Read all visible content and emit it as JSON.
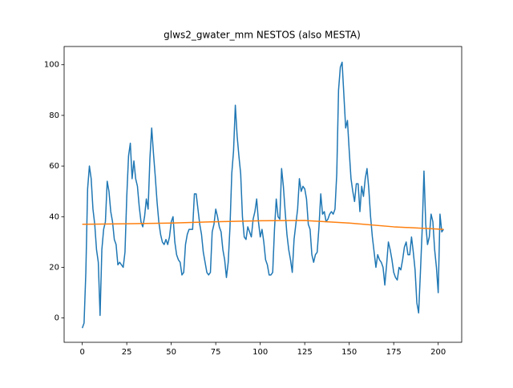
{
  "chart_data": {
    "type": "line",
    "title": "glws2_gwater_mm NESTOS (also MESTA)",
    "xlim": [
      -10.2,
      213.2
    ],
    "ylim": [
      -9.6,
      107.2
    ],
    "xticks": [
      0,
      25,
      50,
      75,
      100,
      125,
      150,
      175,
      200
    ],
    "yticks": [
      0,
      20,
      40,
      60,
      80,
      100
    ],
    "grid": false,
    "series": [
      {
        "color": "#1f77b4",
        "x": [
          0,
          1,
          2,
          3,
          4,
          5,
          6,
          7,
          8,
          9,
          10,
          11,
          12,
          13,
          14,
          15,
          16,
          17,
          18,
          19,
          20,
          21,
          22,
          23,
          24,
          25,
          26,
          27,
          28,
          29,
          30,
          31,
          32,
          33,
          34,
          35,
          36,
          37,
          38,
          39,
          40,
          41,
          42,
          43,
          44,
          45,
          46,
          47,
          48,
          49,
          50,
          51,
          52,
          53,
          54,
          55,
          56,
          57,
          58,
          59,
          60,
          61,
          62,
          63,
          64,
          65,
          66,
          67,
          68,
          69,
          70,
          71,
          72,
          73,
          74,
          75,
          76,
          77,
          78,
          79,
          80,
          81,
          82,
          83,
          84,
          85,
          86,
          87,
          88,
          89,
          90,
          91,
          92,
          93,
          94,
          95,
          96,
          97,
          98,
          99,
          100,
          101,
          102,
          103,
          104,
          105,
          106,
          107,
          108,
          109,
          110,
          111,
          112,
          113,
          114,
          115,
          116,
          117,
          118,
          119,
          120,
          121,
          122,
          123,
          124,
          125,
          126,
          127,
          128,
          129,
          130,
          131,
          132,
          133,
          134,
          135,
          136,
          137,
          138,
          139,
          140,
          141,
          142,
          143,
          144,
          145,
          146,
          147,
          148,
          149,
          150,
          151,
          152,
          153,
          154,
          155,
          156,
          157,
          158,
          159,
          160,
          161,
          162,
          163,
          164,
          165,
          166,
          167,
          168,
          169,
          170,
          171,
          172,
          173,
          174,
          175,
          176,
          177,
          178,
          179,
          180,
          181,
          182,
          183,
          184,
          185,
          186,
          187,
          188,
          189,
          190,
          191,
          192,
          193,
          194,
          195,
          196,
          197,
          198,
          199,
          200,
          201,
          202,
          203
        ],
        "values": [
          -4,
          -2,
          18,
          51,
          60,
          55,
          43,
          37,
          27,
          22,
          1,
          27,
          35,
          38,
          54,
          50,
          42,
          38,
          31,
          29,
          21,
          22,
          21,
          20,
          26,
          48,
          64,
          69,
          55,
          62,
          55,
          52,
          44,
          38,
          36,
          40,
          47,
          43,
          63,
          75,
          65,
          56,
          46,
          38,
          33,
          30,
          29,
          31,
          29,
          32,
          38,
          40,
          30,
          25,
          23,
          22,
          17,
          18,
          29,
          33,
          35,
          35,
          35,
          49,
          49,
          43,
          37,
          33,
          26,
          22,
          18,
          17,
          18,
          34,
          37,
          43,
          40,
          36,
          34,
          27,
          23,
          16,
          22,
          36,
          57,
          66,
          84,
          72,
          64,
          57,
          40,
          32,
          31,
          36,
          34,
          32,
          39,
          42,
          47,
          38,
          32,
          35,
          30,
          23,
          21,
          17,
          17,
          18,
          35,
          47,
          40,
          39,
          59,
          52,
          42,
          33,
          27,
          23,
          18,
          31,
          37,
          43,
          55,
          50,
          52,
          51,
          47,
          37,
          35,
          25,
          22,
          25,
          26,
          36,
          49,
          41,
          42,
          38,
          39,
          41,
          42,
          41,
          43,
          57,
          90,
          99,
          101,
          88,
          75,
          78,
          66,
          55,
          50,
          46,
          53,
          53,
          42,
          52,
          48,
          55,
          59,
          51,
          40,
          32,
          26,
          20,
          25,
          23,
          22,
          20,
          13,
          21,
          30,
          27,
          23,
          18,
          16,
          15,
          20,
          19,
          23,
          28,
          30,
          25,
          25,
          32,
          26,
          19,
          6,
          2,
          18,
          35,
          58,
          37,
          29,
          32,
          41,
          38,
          27,
          20,
          10,
          41,
          34,
          35
        ]
      },
      {
        "color": "#ff7f0e",
        "x": [
          0,
          25,
          50,
          75,
          100,
          125,
          150,
          175,
          203
        ],
        "values": [
          37,
          37.2,
          37.5,
          38,
          38.4,
          38.5,
          37.5,
          36,
          35
        ]
      }
    ]
  }
}
